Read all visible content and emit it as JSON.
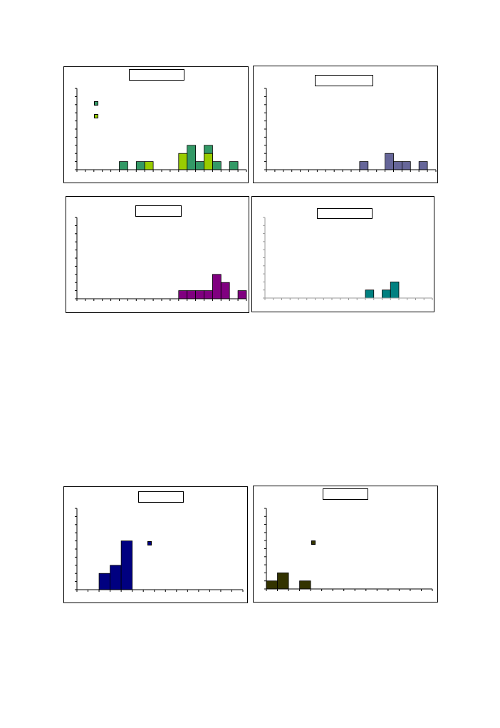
{
  "chart_data": [
    {
      "type": "bar",
      "title": "",
      "n_bins": 20,
      "ylim": [
        0,
        10
      ],
      "y_ticks": 10,
      "grid": false,
      "legend": "top-left",
      "axis_color": "#000000",
      "series": [
        {
          "color": "#339966",
          "values": [
            0,
            0,
            0,
            0,
            0,
            1,
            0,
            1,
            0,
            0,
            0,
            0,
            0,
            3,
            1,
            3,
            1,
            0,
            1,
            0
          ]
        },
        {
          "color": "#99CC00",
          "values": [
            0,
            0,
            0,
            0,
            0,
            0,
            0,
            0,
            1,
            0,
            0,
            0,
            2,
            0,
            0,
            2,
            0,
            0,
            0,
            0
          ]
        }
      ]
    },
    {
      "type": "bar",
      "title": "",
      "n_bins": 20,
      "ylim": [
        0,
        10
      ],
      "y_ticks": 10,
      "grid": false,
      "legend": "none",
      "axis_color": "#000000",
      "series": [
        {
          "color": "#666699",
          "values": [
            0,
            0,
            0,
            0,
            0,
            0,
            0,
            0,
            0,
            0,
            0,
            1,
            0,
            0,
            2,
            1,
            1,
            0,
            1,
            0
          ]
        }
      ]
    },
    {
      "type": "bar",
      "title": "",
      "n_bins": 20,
      "ylim": [
        0,
        10
      ],
      "y_ticks": 10,
      "grid": false,
      "legend": "none",
      "axis_color": "#000000",
      "series": [
        {
          "color": "#800080",
          "values": [
            0,
            0,
            0,
            0,
            0,
            0,
            0,
            0,
            0,
            0,
            0,
            0,
            1,
            1,
            1,
            1,
            3,
            2,
            0,
            1
          ]
        }
      ]
    },
    {
      "type": "bar",
      "title": "",
      "n_bins": 20,
      "ylim": [
        0,
        10
      ],
      "y_ticks": 10,
      "grid": false,
      "legend": "none",
      "axis_color": "#999999",
      "series": [
        {
          "color": "#008080",
          "values": [
            0,
            0,
            0,
            0,
            0,
            0,
            0,
            0,
            0,
            0,
            0,
            0,
            1,
            0,
            1,
            2,
            0,
            0,
            0,
            0
          ]
        }
      ]
    },
    {
      "type": "bar",
      "title": "",
      "n_bins": 15,
      "ylim": [
        0,
        10
      ],
      "y_ticks": 10,
      "grid": false,
      "legend": "top-center",
      "axis_color": "#000000",
      "series": [
        {
          "color": "#000080",
          "values": [
            0,
            0,
            2,
            3,
            6,
            0,
            0,
            0,
            0,
            0,
            0,
            0,
            0,
            0,
            0
          ]
        }
      ]
    },
    {
      "type": "bar",
      "title": "",
      "n_bins": 15,
      "ylim": [
        0,
        10
      ],
      "y_ticks": 10,
      "grid": false,
      "legend": "top-left",
      "axis_color": "#000000",
      "series": [
        {
          "color": "#333300",
          "values": [
            1,
            2,
            0,
            1,
            0,
            0,
            0,
            0,
            0,
            0,
            0,
            0,
            0,
            0,
            0
          ]
        }
      ]
    }
  ]
}
